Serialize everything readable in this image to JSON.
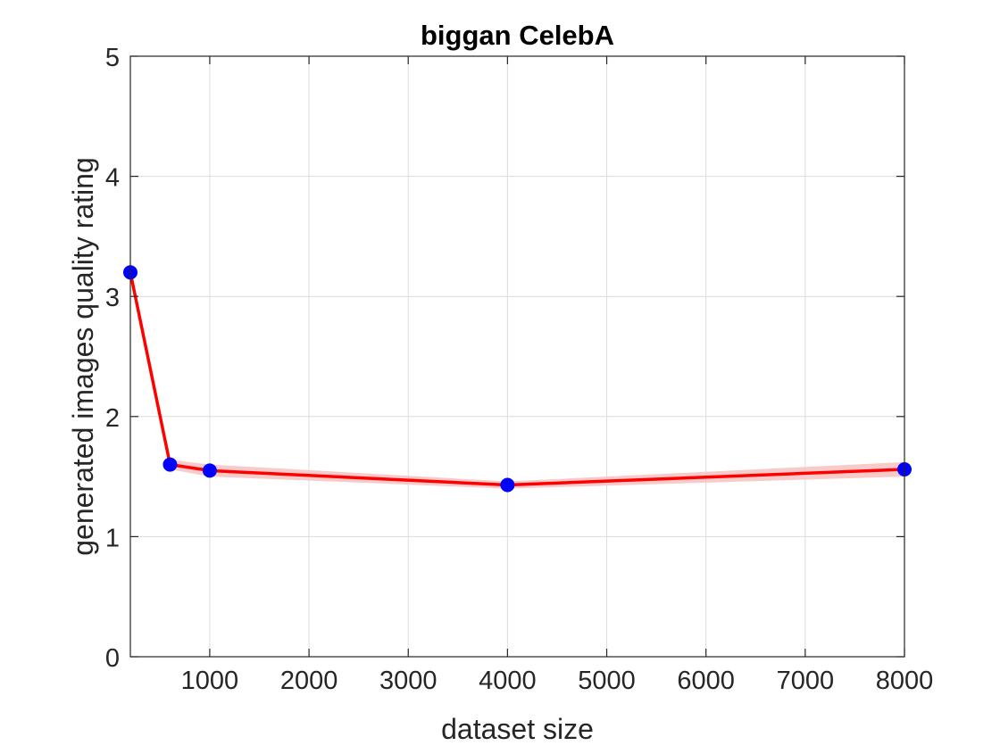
{
  "chart_data": {
    "type": "line",
    "title": "biggan CelebA",
    "xlabel": "dataset size",
    "ylabel": "generated images quality rating",
    "xlim": [
      200,
      8000
    ],
    "ylim": [
      0,
      5
    ],
    "xticks": [
      1000,
      2000,
      3000,
      4000,
      5000,
      6000,
      7000,
      8000
    ],
    "yticks": [
      0,
      1,
      2,
      3,
      4,
      5
    ],
    "grid": true,
    "x": [
      200,
      600,
      1000,
      4000,
      8000
    ],
    "series": [
      {
        "values": [
          3.2,
          1.6,
          1.55,
          1.43,
          1.56
        ],
        "band_low": [
          3.17,
          1.56,
          1.5,
          1.4,
          1.5
        ],
        "band_high": [
          3.23,
          1.64,
          1.6,
          1.46,
          1.62
        ],
        "line_color": "#ff0000",
        "marker_color": "#0000ff",
        "band_color": "#f7c5c5"
      }
    ]
  }
}
